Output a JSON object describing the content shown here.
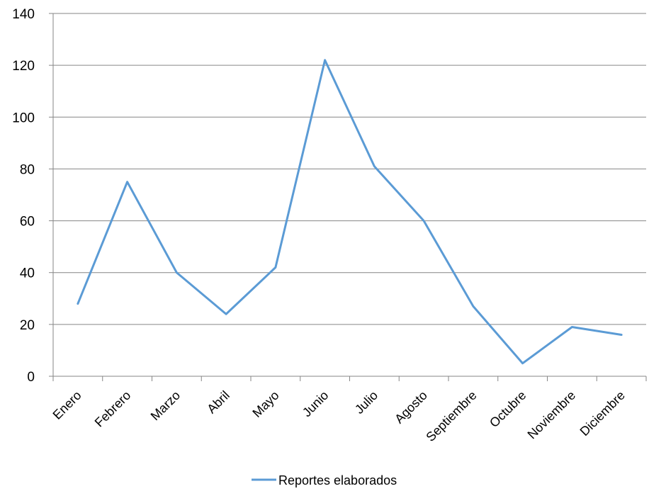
{
  "chart_data": {
    "type": "line",
    "title": "",
    "xlabel": "",
    "ylabel": "",
    "categories": [
      "Enero",
      "Febrero",
      "Marzo",
      "Abril",
      "Mayo",
      "Junio",
      "Julio",
      "Agosto",
      "Septiembre",
      "Octubre",
      "Noviembre",
      "Diciembre"
    ],
    "series": [
      {
        "name": "Reportes elaborados",
        "values": [
          28,
          75,
          40,
          24,
          42,
          122,
          81,
          60,
          27,
          5,
          19,
          16
        ],
        "color": "#5B9BD5"
      }
    ],
    "ylim": [
      0,
      140
    ],
    "yticks": [
      0,
      20,
      40,
      60,
      80,
      100,
      120,
      140
    ],
    "grid": true,
    "legend": "bottom"
  }
}
